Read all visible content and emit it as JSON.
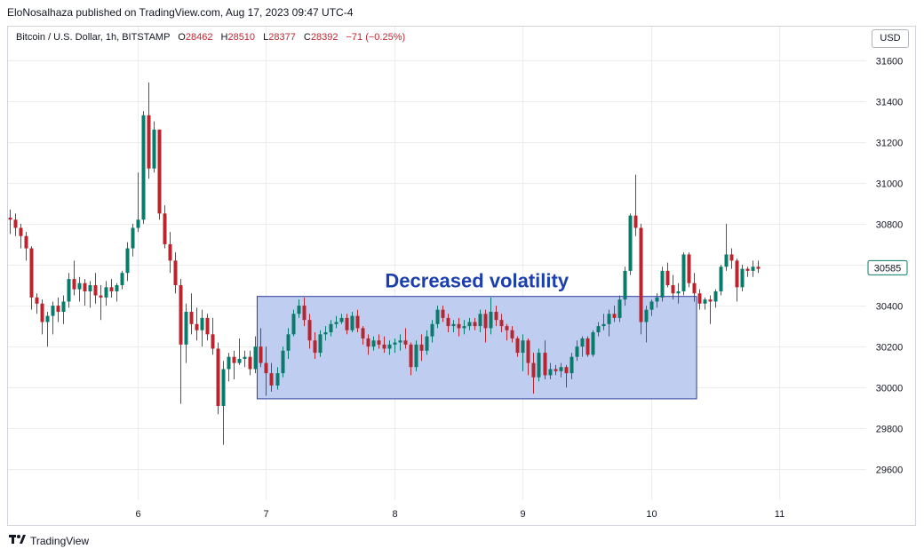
{
  "header": {
    "published": "EloNosalhaza published on TradingView.com, Aug 17, 2023 09:47 UTC-4"
  },
  "legend": {
    "symbol": "Bitcoin / U.S. Dollar, 1h, BITSTAMP",
    "o_label": "O",
    "o_val": "28462",
    "h_label": "H",
    "h_val": "28510",
    "l_label": "L",
    "l_val": "28377",
    "c_label": "C",
    "c_val": "28392",
    "change": "−71 (−0.25%)"
  },
  "currency_button": "USD",
  "footer": {
    "brand": "TradingView"
  },
  "colors": {
    "up": "#0a7b6a",
    "down": "#b8252e",
    "box_fill": "#bccaf0",
    "box_stroke": "#2a3c9c",
    "grid": "#ececec",
    "price_tag": "#0a7b6a"
  },
  "chart_data": {
    "type": "candlestick",
    "symbol": "BTCUSD",
    "interval": "1h",
    "ylim": [
      29450,
      31650
    ],
    "y_ticks": [
      29600,
      29800,
      30000,
      30200,
      30400,
      30600,
      30800,
      31000,
      31200,
      31400,
      31600
    ],
    "y_tick_labels": [
      "29600",
      "29800",
      "30000",
      "30200",
      "30400",
      "",
      "30800",
      "31000",
      "31200",
      "31400",
      "31600"
    ],
    "x_ticks": [
      "6",
      "7",
      "8",
      "9",
      "10",
      "11"
    ],
    "x_tick_positions_hours": [
      24,
      48,
      72,
      96,
      120,
      144
    ],
    "last_price": "30585",
    "last_price_value": 30585,
    "annotation": {
      "text": "Decreased volatility",
      "x_start_hours": 47,
      "x_end_hours": 128,
      "y_low": 29945,
      "y_high": 30445
    },
    "ohlc": [
      [
        30830,
        30870,
        30750,
        30820
      ],
      [
        30820,
        30850,
        30740,
        30780
      ],
      [
        30780,
        30800,
        30680,
        30740
      ],
      [
        30740,
        30760,
        30620,
        30680
      ],
      [
        30680,
        30690,
        30380,
        30440
      ],
      [
        30440,
        30460,
        30360,
        30410
      ],
      [
        30410,
        30430,
        30260,
        30320
      ],
      [
        30320,
        30370,
        30200,
        30350
      ],
      [
        30350,
        30420,
        30260,
        30400
      ],
      [
        30400,
        30440,
        30320,
        30370
      ],
      [
        30370,
        30450,
        30310,
        30420
      ],
      [
        30420,
        30560,
        30390,
        30530
      ],
      [
        30530,
        30620,
        30450,
        30480
      ],
      [
        30480,
        30540,
        30420,
        30510
      ],
      [
        30510,
        30530,
        30400,
        30470
      ],
      [
        30470,
        30520,
        30390,
        30500
      ],
      [
        30500,
        30560,
        30410,
        30450
      ],
      [
        30450,
        30500,
        30330,
        30440
      ],
      [
        30440,
        30520,
        30400,
        30490
      ],
      [
        30490,
        30530,
        30440,
        30470
      ],
      [
        30470,
        30510,
        30420,
        30500
      ],
      [
        30500,
        30570,
        30480,
        30560
      ],
      [
        30560,
        30710,
        30520,
        30680
      ],
      [
        30680,
        30800,
        30640,
        30780
      ],
      [
        30780,
        31050,
        30760,
        30820
      ],
      [
        30820,
        31350,
        30800,
        31330
      ],
      [
        31330,
        31490,
        31020,
        31070
      ],
      [
        31070,
        31300,
        31050,
        31260
      ],
      [
        31260,
        31260,
        30820,
        30850
      ],
      [
        30850,
        30890,
        30680,
        30700
      ],
      [
        30700,
        30760,
        30560,
        30620
      ],
      [
        30620,
        30660,
        30460,
        30500
      ],
      [
        30500,
        30530,
        29920,
        30210
      ],
      [
        30210,
        30410,
        30120,
        30370
      ],
      [
        30370,
        30460,
        30260,
        30310
      ],
      [
        30310,
        30390,
        30230,
        30280
      ],
      [
        30280,
        30380,
        30200,
        30340
      ],
      [
        30340,
        30360,
        30230,
        30260
      ],
      [
        30260,
        30340,
        30160,
        30190
      ],
      [
        30190,
        30220,
        29870,
        29910
      ],
      [
        29910,
        30130,
        29720,
        30090
      ],
      [
        30090,
        30170,
        30030,
        30150
      ],
      [
        30150,
        30180,
        30040,
        30120
      ],
      [
        30120,
        30240,
        30110,
        30140
      ],
      [
        30140,
        30180,
        30100,
        30150
      ],
      [
        30150,
        30180,
        30060,
        30090
      ],
      [
        30090,
        30250,
        30070,
        30200
      ],
      [
        30200,
        30290,
        30100,
        30120
      ],
      [
        30120,
        30200,
        29960,
        30070
      ],
      [
        30070,
        30120,
        29980,
        30010
      ],
      [
        30010,
        30100,
        29990,
        30070
      ],
      [
        30070,
        30200,
        30050,
        30180
      ],
      [
        30180,
        30290,
        30140,
        30260
      ],
      [
        30260,
        30380,
        30250,
        30360
      ],
      [
        30360,
        30430,
        30340,
        30400
      ],
      [
        30400,
        30440,
        30300,
        30330
      ],
      [
        30330,
        30360,
        30190,
        30230
      ],
      [
        30230,
        30270,
        30140,
        30170
      ],
      [
        30170,
        30280,
        30150,
        30260
      ],
      [
        30260,
        30300,
        30230,
        30270
      ],
      [
        30270,
        30330,
        30250,
        30310
      ],
      [
        30310,
        30350,
        30290,
        30320
      ],
      [
        30320,
        30360,
        30310,
        30340
      ],
      [
        30340,
        30360,
        30260,
        30280
      ],
      [
        30280,
        30370,
        30270,
        30350
      ],
      [
        30350,
        30380,
        30270,
        30290
      ],
      [
        30290,
        30300,
        30210,
        30240
      ],
      [
        30240,
        30260,
        30160,
        30200
      ],
      [
        30200,
        30250,
        30180,
        30230
      ],
      [
        30230,
        30260,
        30190,
        30210
      ],
      [
        30210,
        30250,
        30170,
        30190
      ],
      [
        30190,
        30230,
        30160,
        30210
      ],
      [
        30210,
        30240,
        30170,
        30220
      ],
      [
        30220,
        30260,
        30180,
        30230
      ],
      [
        30230,
        30290,
        30190,
        30210
      ],
      [
        30210,
        30220,
        30060,
        30100
      ],
      [
        30100,
        30230,
        30080,
        30210
      ],
      [
        30210,
        30260,
        30130,
        30180
      ],
      [
        30180,
        30280,
        30160,
        30250
      ],
      [
        30250,
        30330,
        30220,
        30310
      ],
      [
        30310,
        30400,
        30290,
        30380
      ],
      [
        30380,
        30400,
        30320,
        30340
      ],
      [
        30340,
        30360,
        30270,
        30300
      ],
      [
        30300,
        30330,
        30270,
        30310
      ],
      [
        30310,
        30340,
        30250,
        30290
      ],
      [
        30290,
        30330,
        30260,
        30300
      ],
      [
        30300,
        30340,
        30280,
        30320
      ],
      [
        30320,
        30340,
        30280,
        30300
      ],
      [
        30300,
        30380,
        30270,
        30360
      ],
      [
        30360,
        30380,
        30220,
        30290
      ],
      [
        30290,
        30440,
        30260,
        30370
      ],
      [
        30370,
        30400,
        30300,
        30330
      ],
      [
        30330,
        30360,
        30270,
        30300
      ],
      [
        30300,
        30310,
        30230,
        30280
      ],
      [
        30280,
        30300,
        30220,
        30240
      ],
      [
        30240,
        30250,
        30150,
        30170
      ],
      [
        30170,
        30260,
        30080,
        30230
      ],
      [
        30230,
        30240,
        30060,
        30120
      ],
      [
        30120,
        30170,
        29970,
        30050
      ],
      [
        30050,
        30190,
        30030,
        30170
      ],
      [
        30170,
        30230,
        30040,
        30060
      ],
      [
        30060,
        30120,
        30040,
        30090
      ],
      [
        30090,
        30110,
        30060,
        30080
      ],
      [
        30080,
        30120,
        30050,
        30100
      ],
      [
        30100,
        30110,
        30000,
        30070
      ],
      [
        30070,
        30170,
        30040,
        30150
      ],
      [
        30150,
        30230,
        30130,
        30200
      ],
      [
        30200,
        30250,
        30150,
        30240
      ],
      [
        30240,
        30250,
        30150,
        30160
      ],
      [
        30160,
        30280,
        30150,
        30270
      ],
      [
        30270,
        30320,
        30250,
        30300
      ],
      [
        30300,
        30360,
        30280,
        30310
      ],
      [
        30310,
        30380,
        30250,
        30360
      ],
      [
        30360,
        30400,
        30320,
        30340
      ],
      [
        30340,
        30450,
        30320,
        30430
      ],
      [
        30430,
        30590,
        30400,
        30570
      ],
      [
        30570,
        30850,
        30550,
        30840
      ],
      [
        30840,
        31040,
        30740,
        30780
      ],
      [
        30780,
        30800,
        30260,
        30320
      ],
      [
        30320,
        30400,
        30220,
        30380
      ],
      [
        30380,
        30430,
        30350,
        30420
      ],
      [
        30420,
        30460,
        30390,
        30440
      ],
      [
        30440,
        30590,
        30420,
        30570
      ],
      [
        30570,
        30610,
        30490,
        30500
      ],
      [
        30500,
        30550,
        30430,
        30460
      ],
      [
        30460,
        30510,
        30410,
        30470
      ],
      [
        30470,
        30660,
        30450,
        30650
      ],
      [
        30650,
        30660,
        30490,
        30510
      ],
      [
        30510,
        30560,
        30420,
        30460
      ],
      [
        30460,
        30480,
        30380,
        30410
      ],
      [
        30410,
        30440,
        30380,
        30430
      ],
      [
        30430,
        30450,
        30310,
        30420
      ],
      [
        30420,
        30480,
        30390,
        30470
      ],
      [
        30470,
        30600,
        30450,
        30590
      ],
      [
        30590,
        30800,
        30570,
        30650
      ],
      [
        30650,
        30680,
        30580,
        30620
      ],
      [
        30620,
        30630,
        30420,
        30490
      ],
      [
        30490,
        30600,
        30470,
        30580
      ],
      [
        30580,
        30590,
        30540,
        30570
      ],
      [
        30570,
        30620,
        30540,
        30590
      ],
      [
        30590,
        30620,
        30560,
        30580
      ]
    ]
  }
}
